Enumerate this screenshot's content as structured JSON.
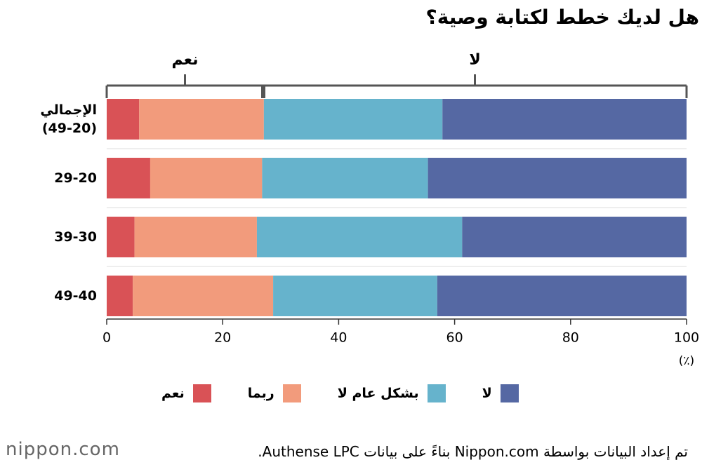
{
  "chart_data": {
    "type": "stacked-bar-horizontal",
    "title": "هل لديك خطط لكتابة وصية؟",
    "categories": [
      "الإجمالي\n(49-20)",
      "29-20",
      "39-30",
      "49-40"
    ],
    "series": [
      {
        "name": "نعم",
        "color": "#d95256",
        "values": [
          5.6,
          7.5,
          4.8,
          4.5
        ]
      },
      {
        "name": "ربما",
        "color": "#f29b7c",
        "values": [
          21.5,
          19.3,
          21.1,
          24.2
        ]
      },
      {
        "name": "بشكل عام لا",
        "color": "#66b3cc",
        "values": [
          30.8,
          28.6,
          35.4,
          28.3
        ]
      },
      {
        "name": "لا",
        "color": "#5568a3",
        "values": [
          42.1,
          44.6,
          38.7,
          43.0
        ]
      }
    ],
    "xlim": [
      0,
      100
    ],
    "xticks": [
      0,
      20,
      40,
      60,
      80,
      100
    ],
    "x_unit": "(٪)",
    "bracket": {
      "split": 27,
      "labels": [
        "نعم",
        "لا"
      ]
    },
    "source": "تم إعداد البيانات بواسطة Nippon.com بناءً على بيانات Authense LPC.",
    "logo": "nippon.com"
  }
}
